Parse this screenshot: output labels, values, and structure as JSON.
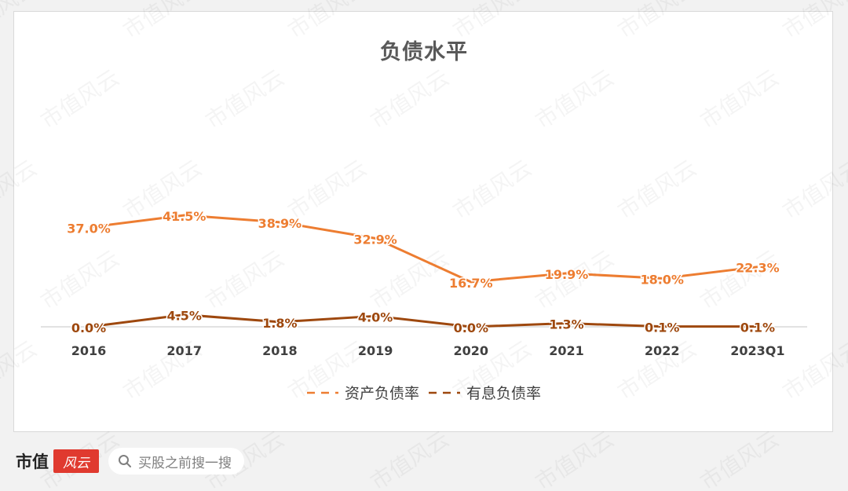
{
  "chart_data": {
    "type": "line",
    "title": "负债水平",
    "categories": [
      "2016",
      "2017",
      "2018",
      "2019",
      "2020",
      "2021",
      "2022",
      "2023Q1"
    ],
    "series": [
      {
        "name": "资产负债率",
        "values": [
          37.0,
          41.5,
          38.9,
          32.9,
          16.7,
          19.9,
          18.0,
          22.3
        ],
        "labels": [
          "37.0%",
          "41.5%",
          "38.9%",
          "32.9%",
          "16.7%",
          "19.9%",
          "18.0%",
          "22.3%"
        ],
        "color": "#ed7d31"
      },
      {
        "name": "有息负债率",
        "values": [
          0.0,
          4.5,
          1.8,
          4.0,
          0.0,
          1.3,
          0.1,
          0.1
        ],
        "labels": [
          "0.0%",
          "4.5%",
          "1.8%",
          "4.0%",
          "0.0%",
          "1.3%",
          "0.1%",
          "0.1%"
        ],
        "color": "#9e480e"
      }
    ],
    "ylim": [
      0,
      45
    ],
    "grid": false,
    "legend": "bottom"
  },
  "watermark": {
    "text": "市值风云"
  },
  "footer": {
    "brand_name": "市值",
    "brand_logo_text": "风云",
    "search_placeholder": "买股之前搜一搜",
    "search_icon": "search-icon"
  }
}
